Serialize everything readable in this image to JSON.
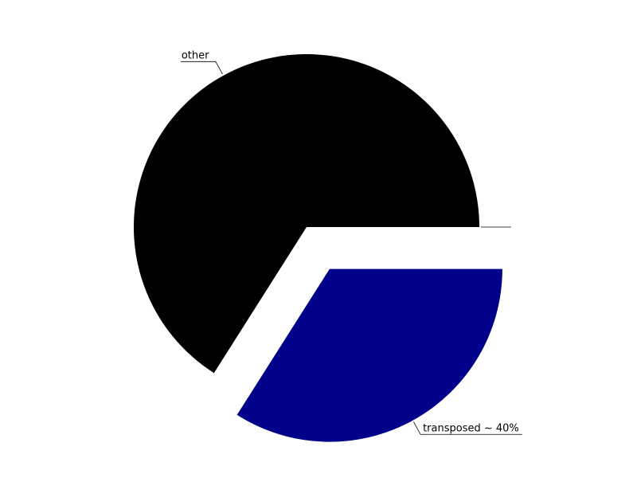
{
  "chart_data": {
    "type": "pie",
    "start_angle_deg": 0,
    "direction": "counterclockwise",
    "slices": [
      {
        "label": "other",
        "value": 66,
        "color": "#000000",
        "exploded": false
      },
      {
        "label": "transposed ~ 40%",
        "value": 34,
        "color": "#00008b",
        "exploded": true
      },
      {
        "label": "",
        "value": 0,
        "color": "#00008b",
        "exploded": false
      }
    ]
  }
}
